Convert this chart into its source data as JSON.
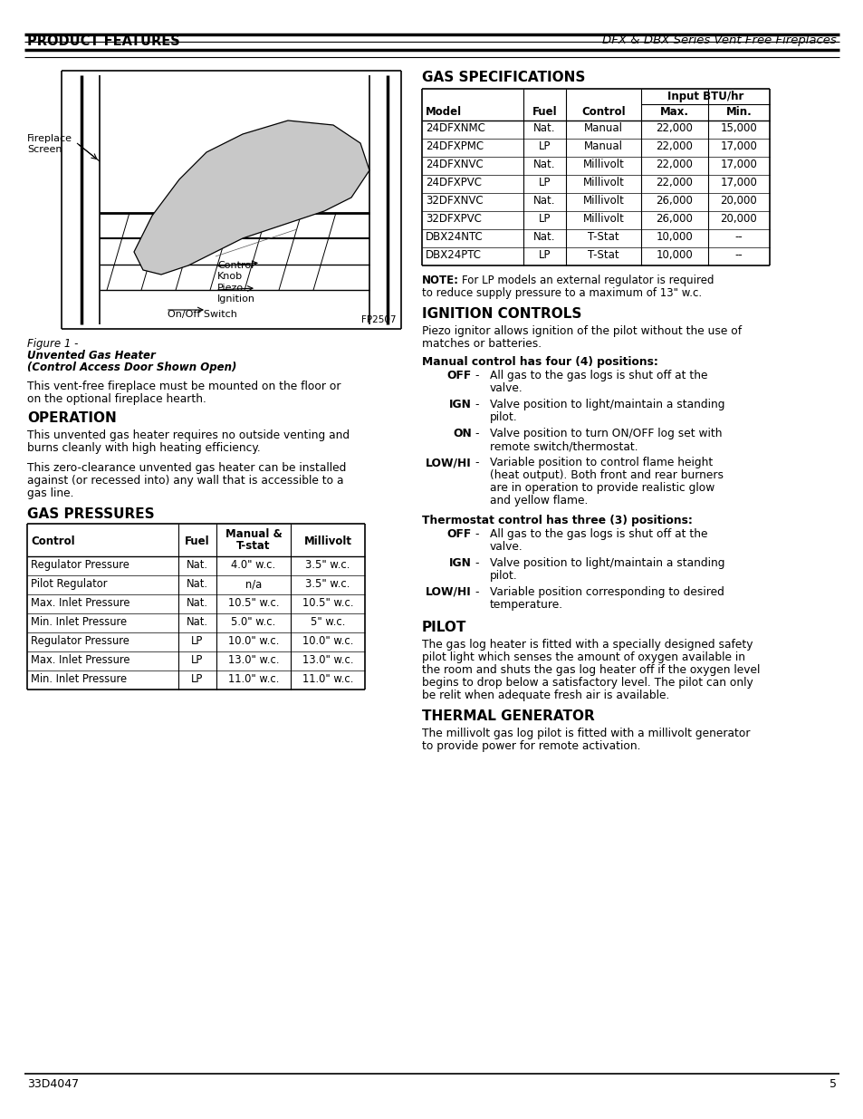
{
  "page_title_left": "PRODUCT FEATURES",
  "page_title_right": "DFX & DBX Series Vent Free Fireplaces",
  "page_number": "5",
  "doc_number": "33D4047",
  "gas_spec_title": "GAS SPECIFICATIONS",
  "gas_spec_rows": [
    [
      "24DFXNMC",
      "Nat.",
      "Manual",
      "22,000",
      "15,000"
    ],
    [
      "24DFXPMC",
      "LP",
      "Manual",
      "22,000",
      "17,000"
    ],
    [
      "24DFXNVC",
      "Nat.",
      "Millivolt",
      "22,000",
      "17,000"
    ],
    [
      "24DFXPVC",
      "LP",
      "Millivolt",
      "22,000",
      "17,000"
    ],
    [
      "32DFXNVC",
      "Nat.",
      "Millivolt",
      "26,000",
      "20,000"
    ],
    [
      "32DFXPVC",
      "LP",
      "Millivolt",
      "26,000",
      "20,000"
    ],
    [
      "DBX24NTC",
      "Nat.",
      "T-Stat",
      "10,000",
      "--"
    ],
    [
      "DBX24PTC",
      "LP",
      "T-Stat",
      "10,000",
      "--"
    ]
  ],
  "ignition_title": "IGNITION CONTROLS",
  "ignition_intro_lines": [
    "Piezo ignitor allows ignition of the pilot without the use of",
    "matches or batteries."
  ],
  "manual_header": "Manual control has four (4) positions:",
  "manual_items": [
    {
      "key": "OFF",
      "text": [
        "All gas to the gas logs is shut off at the",
        "valve."
      ]
    },
    {
      "key": "IGN",
      "text": [
        "Valve position to light/maintain a standing",
        "pilot."
      ]
    },
    {
      "key": "ON",
      "text": [
        "Valve position to turn ON/OFF log set with",
        "remote switch/thermostat."
      ]
    },
    {
      "key": "LOW/HI",
      "text": [
        "Variable position to control flame height",
        "(heat output). Both front and rear burners",
        "are in operation to provide realistic glow",
        "and yellow flame."
      ]
    }
  ],
  "thermostat_header": "Thermostat control has three (3) positions:",
  "thermostat_items": [
    {
      "key": "OFF",
      "text": [
        "All gas to the gas logs is shut off at the",
        "valve."
      ]
    },
    {
      "key": "IGN",
      "text": [
        "Valve position to light/maintain a standing",
        "pilot."
      ]
    },
    {
      "key": "LOW/HI",
      "text": [
        "Variable position corresponding to desired",
        "temperature."
      ]
    }
  ],
  "pilot_title": "PILOT",
  "pilot_lines": [
    "The gas log heater is fitted with a specially designed safety",
    "pilot light which senses the amount of oxygen available in",
    "the room and shuts the gas log heater off if the oxygen level",
    "begins to drop below a satisfactory level. The pilot can only",
    "be relit when adequate fresh air is available."
  ],
  "thermal_title": "THERMAL GENERATOR",
  "thermal_lines": [
    "The millivolt gas log pilot is fitted with a millivolt generator",
    "to provide power for remote activation."
  ],
  "fig_number": "Figure 1 -",
  "fig_cap1": "Unvented Gas Heater",
  "fig_cap2": "(Control Access Door Shown Open)",
  "fig_code": "FP2507",
  "operation_title": "OPERATION",
  "op_text1_lines": [
    "This vent-free fireplace must be mounted on the floor or",
    "on the optional fireplace hearth."
  ],
  "op_text2_lines": [
    "This unvented gas heater requires no outside venting and",
    "burns cleanly with high heating efficiency."
  ],
  "op_text3_lines": [
    "This zero-clearance unvented gas heater can be installed",
    "against (or recessed into) any wall that is accessible to a",
    "gas line."
  ],
  "gas_pressures_title": "GAS PRESSURES",
  "gp_rows": [
    [
      "Regulator Pressure",
      "Nat.",
      "4.0\" w.c.",
      "3.5\" w.c."
    ],
    [
      "Pilot Regulator",
      "Nat.",
      "n/a",
      "3.5\" w.c."
    ],
    [
      "Max. Inlet Pressure",
      "Nat.",
      "10.5\" w.c.",
      "10.5\" w.c."
    ],
    [
      "Min. Inlet Pressure",
      "Nat.",
      "5.0\" w.c.",
      "5\" w.c."
    ],
    [
      "Regulator Pressure",
      "LP",
      "10.0\" w.c.",
      "10.0\" w.c."
    ],
    [
      "Max. Inlet Pressure",
      "LP",
      "13.0\" w.c.",
      "13.0\" w.c."
    ],
    [
      "Min. Inlet Pressure",
      "LP",
      "11.0\" w.c.",
      "11.0\" w.c."
    ]
  ]
}
